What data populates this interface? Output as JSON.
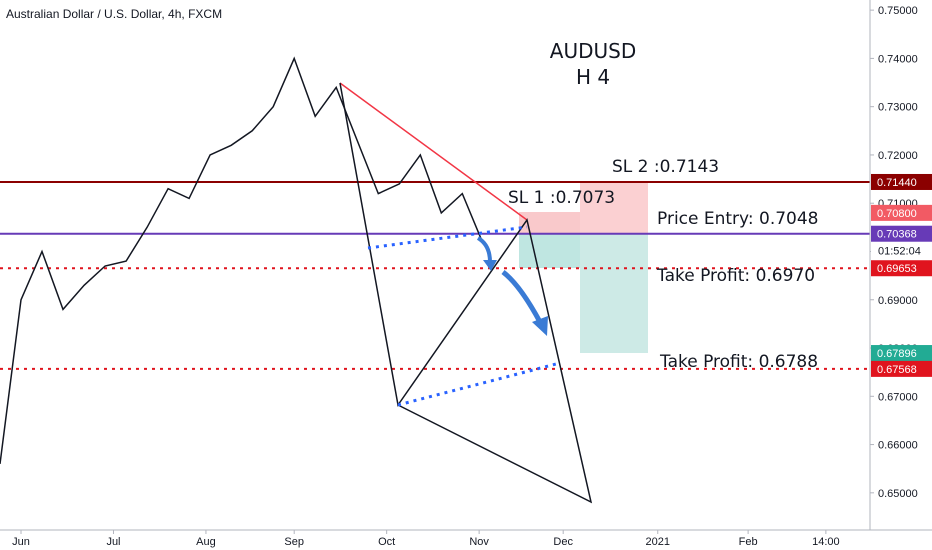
{
  "chart_data": {
    "type": "line",
    "title": "Australian Dollar / U.S. Dollar, 4h, FXCM",
    "xlim": [
      0,
      41.4
    ],
    "xticks": [
      {
        "value": 1,
        "label": "Jun"
      },
      {
        "value": 5.4,
        "label": "Jul"
      },
      {
        "value": 9.8,
        "label": "Aug"
      },
      {
        "value": 14,
        "label": "Sep"
      },
      {
        "value": 18.4,
        "label": "Oct"
      },
      {
        "value": 22.8,
        "label": "Nov"
      },
      {
        "value": 26.8,
        "label": "Dec"
      },
      {
        "value": 31.3,
        "label": "2021"
      },
      {
        "value": 35.6,
        "label": "Feb"
      },
      {
        "value": 39.3,
        "label": "14:00"
      }
    ],
    "ylim": [
      0.6423,
      0.7521
    ],
    "yticks": [
      {
        "value": 0.65,
        "label": "0.65000"
      },
      {
        "value": 0.66,
        "label": "0.66000"
      },
      {
        "value": 0.67,
        "label": "0.67000"
      },
      {
        "value": 0.68,
        "label": "0.68000"
      },
      {
        "value": 0.69,
        "label": "0.69000"
      },
      {
        "value": 0.7,
        "label": "0.70000"
      },
      {
        "value": 0.71,
        "label": "0.71000"
      },
      {
        "value": 0.72,
        "label": "0.72000"
      },
      {
        "value": 0.73,
        "label": "0.73000"
      },
      {
        "value": 0.74,
        "label": "0.74000"
      },
      {
        "value": 0.75,
        "label": "0.75000"
      }
    ],
    "series": [
      {
        "color": "#131722",
        "x": [
          0,
          1,
          2,
          3,
          4,
          5,
          6,
          7,
          8,
          9,
          10,
          11,
          12,
          13,
          14,
          15,
          16,
          17,
          18,
          19,
          20,
          21,
          22,
          23
        ],
        "values": [
          0.656,
          0.69,
          0.7,
          0.688,
          0.693,
          0.697,
          0.698,
          0.705,
          0.713,
          0.711,
          0.72,
          0.722,
          0.725,
          0.73,
          0.74,
          0.728,
          0.734,
          0.723,
          0.712,
          0.714,
          0.72,
          0.708,
          0.712,
          0.7015
        ]
      }
    ],
    "levels": [
      {
        "value": 0.7144,
        "color": "#8b0000",
        "style": "solid"
      },
      {
        "value": 0.70368,
        "color": "#673ab7",
        "style": "solid"
      },
      {
        "value": 0.69653,
        "color": "#e0141e",
        "style": "dotted"
      },
      {
        "value": 0.67568,
        "color": "#e0141e",
        "style": "dotted"
      }
    ],
    "price_labels": [
      {
        "value": 0.7144,
        "label": "0.71440",
        "color": "#8b0000"
      },
      {
        "value": 0.708,
        "label": "0.70800",
        "color": "#f25a64"
      },
      {
        "value": 0.70368,
        "label": "0.70368",
        "color": "#673ab7"
      },
      {
        "value": 0.69653,
        "label": "0.69653",
        "color": "#e0141e"
      },
      {
        "value": 0.67896,
        "label": "0.67896",
        "color": "#22ab94"
      },
      {
        "value": 0.67568,
        "label": "0.67568",
        "color": "#e0141e"
      }
    ],
    "countdown": "01:52:04",
    "annotations": [
      "AUDUSD",
      "H 4",
      "SL 2 :0.7143",
      "SL 1 :0.7073",
      "Price Entry: 0.7048",
      "Take Profit: 0.6970",
      "Take Profit: 0.6788"
    ]
  }
}
